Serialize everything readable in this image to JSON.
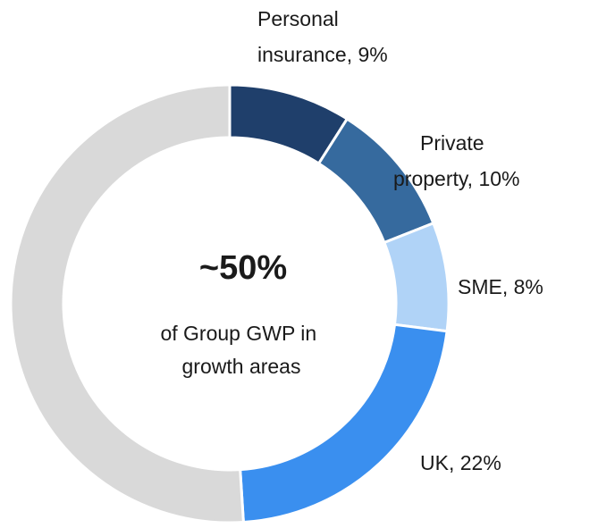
{
  "chart_data": {
    "type": "donut",
    "categories": [
      "Personal insurance",
      "Private property",
      "SME",
      "UK",
      null
    ],
    "values": [
      9,
      10,
      8,
      22,
      51
    ],
    "value_labels": [
      "Personal insurance, 9%",
      "Private property, 10%",
      "SME, 8%",
      "UK, 22%",
      null
    ],
    "colors": [
      "#1f3f6b",
      "#366a9e",
      "#b0d3f7",
      "#3a8fef",
      "#d9d9d9"
    ],
    "center_value": "~50%",
    "center_text": "of Group GWP in growth areas"
  }
}
